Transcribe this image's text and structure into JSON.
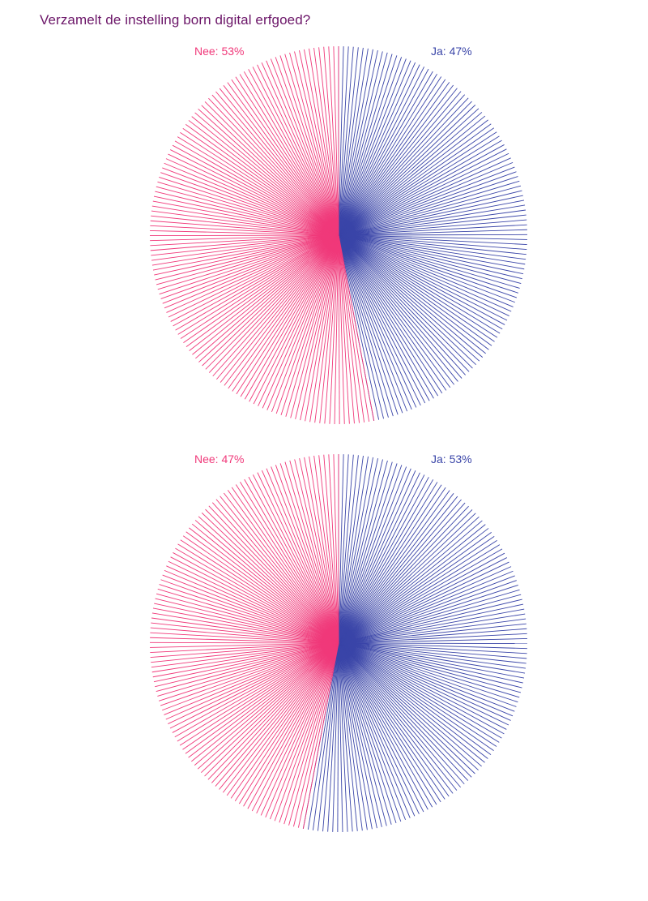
{
  "title": "Verzamelt de instelling born digital erfgoed?",
  "colors": {
    "title": "#6b1568",
    "nee": "#f0397a",
    "ja": "#3a45a8"
  },
  "chart_data": [
    {
      "type": "pie",
      "title": "",
      "legend_placement": "top",
      "slices": [
        {
          "label": "Nee",
          "value": 53,
          "display": "Nee: 53%",
          "color": "#f0397a"
        },
        {
          "label": "Ja",
          "value": 47,
          "display": "Ja: 47%",
          "color": "#3a45a8"
        }
      ]
    },
    {
      "type": "pie",
      "title": "",
      "legend_placement": "top",
      "slices": [
        {
          "label": "Nee",
          "value": 47,
          "display": "Nee: 47%",
          "color": "#f0397a"
        },
        {
          "label": "Ja",
          "value": 53,
          "display": "Ja: 53%",
          "color": "#3a45a8"
        }
      ]
    }
  ]
}
